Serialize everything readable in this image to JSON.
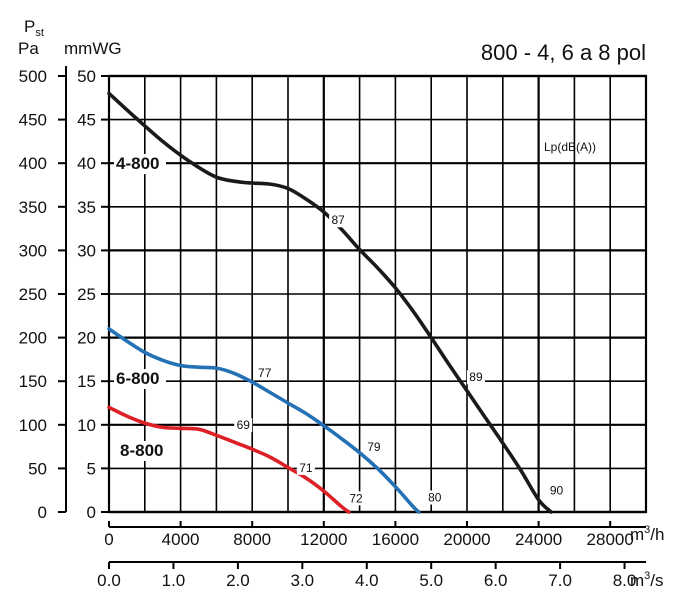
{
  "chart_data": {
    "type": "line",
    "title": "800 - 4, 6 a 8 pol",
    "ylabel_symbol": "P",
    "ylabel_subscript": "st",
    "ylabel_left_unit": "Pa",
    "ylabel_right_unit": "mmWG",
    "legend_note": "Lp(dB(A))",
    "xaxis_primary": {
      "unit": "m",
      "unit_sup": "3",
      "unit_tail": "/h",
      "ticks": [
        0,
        4000,
        8000,
        12000,
        16000,
        20000,
        24000,
        28000
      ],
      "tick_labels": [
        "0",
        "4000",
        "8000",
        "12000",
        "16000",
        "20000",
        "24000",
        "28000"
      ],
      "range": [
        0,
        30000
      ]
    },
    "xaxis_secondary": {
      "unit": "m",
      "unit_sup": "3",
      "unit_tail": "/s",
      "ticks": [
        0,
        1,
        2,
        3,
        4,
        5,
        6,
        7,
        8
      ],
      "tick_labels": [
        "0.0",
        "1.0",
        "2.0",
        "3.0",
        "4.0",
        "5.0",
        "6.0",
        "7.0",
        "8.0"
      ],
      "range": [
        0,
        8.333
      ]
    },
    "yaxis_mmwg": {
      "ticks": [
        0,
        5,
        10,
        15,
        20,
        25,
        30,
        35,
        40,
        45,
        50
      ],
      "tick_labels": [
        "0",
        "5",
        "10",
        "15",
        "20",
        "25",
        "30",
        "35",
        "40",
        "45",
        "50"
      ],
      "range": [
        0,
        50
      ]
    },
    "yaxis_pa": {
      "ticks": [
        0,
        50,
        100,
        150,
        200,
        250,
        300,
        350,
        400,
        450,
        500
      ],
      "tick_labels": [
        "0",
        "50",
        "100",
        "150",
        "200",
        "250",
        "300",
        "350",
        "400",
        "450",
        "500"
      ],
      "range": [
        0,
        500
      ]
    },
    "series": [
      {
        "name": "4-800",
        "color": "#1a1a1a",
        "points": [
          [
            0,
            48
          ],
          [
            1500,
            45.2
          ],
          [
            3000,
            42.5
          ],
          [
            4500,
            40.2
          ],
          [
            6000,
            38.4
          ],
          [
            7500,
            37.8
          ],
          [
            9000,
            37.6
          ],
          [
            10000,
            37.1
          ],
          [
            11000,
            35.9
          ],
          [
            12000,
            34.4
          ],
          [
            13000,
            32.4
          ],
          [
            14000,
            30.1
          ],
          [
            15000,
            28.0
          ],
          [
            16000,
            25.7
          ],
          [
            17000,
            23.0
          ],
          [
            18000,
            20.0
          ],
          [
            19000,
            16.9
          ],
          [
            20000,
            13.9
          ],
          [
            21000,
            10.9
          ],
          [
            22000,
            7.9
          ],
          [
            23000,
            4.8
          ],
          [
            24000,
            1.4
          ],
          [
            24700,
            0
          ]
        ],
        "sound_levels": [
          {
            "x": 12800,
            "y": 33,
            "text": "87"
          },
          {
            "x": 20500,
            "y": 15,
            "text": "89"
          },
          {
            "x": 25000,
            "y": 2,
            "text": "90"
          }
        ]
      },
      {
        "name": "6-800",
        "color": "#2471b5",
        "points": [
          [
            0,
            21
          ],
          [
            1000,
            19.6
          ],
          [
            2000,
            18.3
          ],
          [
            3000,
            17.4
          ],
          [
            4000,
            16.8
          ],
          [
            5000,
            16.6
          ],
          [
            6000,
            16.5
          ],
          [
            7000,
            15.9
          ],
          [
            8000,
            14.9
          ],
          [
            9000,
            13.7
          ],
          [
            10000,
            12.5
          ],
          [
            11000,
            11.3
          ],
          [
            12000,
            9.9
          ],
          [
            13000,
            8.4
          ],
          [
            14000,
            6.8
          ],
          [
            15000,
            5.0
          ],
          [
            16000,
            2.9
          ],
          [
            17000,
            0.6
          ],
          [
            17300,
            0
          ]
        ],
        "sound_levels": [
          {
            "x": 8700,
            "y": 15.5,
            "text": "77"
          },
          {
            "x": 14800,
            "y": 7,
            "text": "79"
          },
          {
            "x": 18200,
            "y": 1.2,
            "text": "80"
          }
        ]
      },
      {
        "name": "8-800",
        "color": "#dd1f26",
        "points": [
          [
            0,
            12
          ],
          [
            1000,
            11.0
          ],
          [
            2000,
            10.2
          ],
          [
            3000,
            9.7
          ],
          [
            4000,
            9.6
          ],
          [
            5000,
            9.5
          ],
          [
            6000,
            8.8
          ],
          [
            7000,
            8.0
          ],
          [
            8000,
            7.2
          ],
          [
            9000,
            6.3
          ],
          [
            10000,
            5.1
          ],
          [
            11000,
            3.9
          ],
          [
            12000,
            2.4
          ],
          [
            13000,
            0.6
          ],
          [
            13400,
            0
          ]
        ],
        "sound_levels": [
          {
            "x": 7500,
            "y": 9.5,
            "text": "69"
          },
          {
            "x": 11000,
            "y": 4.6,
            "text": "71"
          },
          {
            "x": 13800,
            "y": 1.1,
            "text": "72"
          }
        ]
      }
    ]
  }
}
